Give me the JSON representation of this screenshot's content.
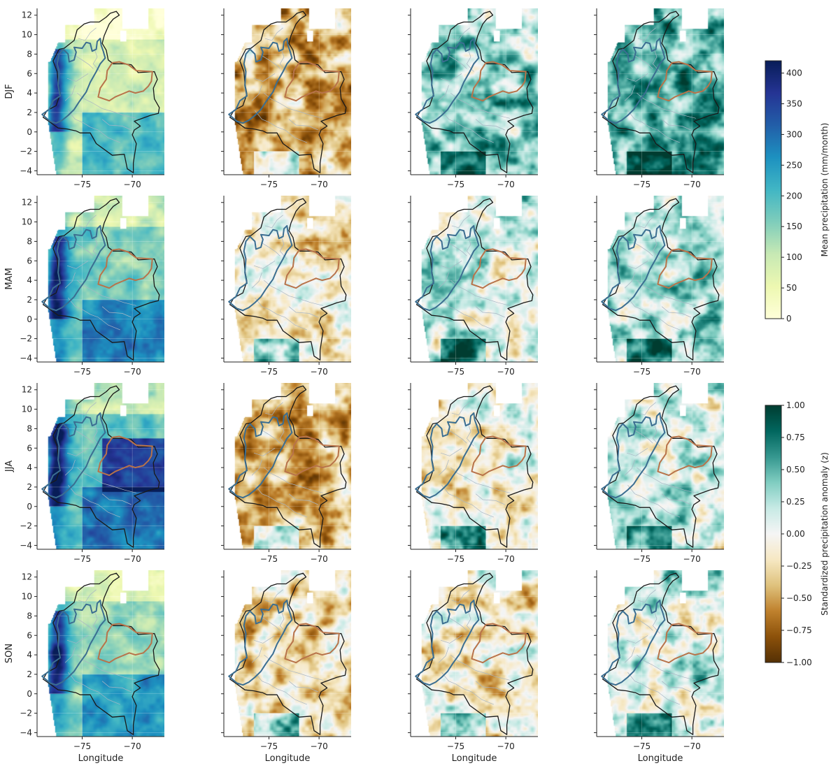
{
  "chart_data": {
    "type": "heatmap",
    "layout": {
      "rows": 4,
      "cols": 4
    },
    "row_labels": [
      "DJF",
      "MAM",
      "JJA",
      "SON"
    ],
    "xlabel": "Longitude",
    "x_ticks": [
      -75,
      -70
    ],
    "y_ticks": [
      12,
      10,
      8,
      6,
      4,
      2,
      0,
      -2,
      -4
    ],
    "x_range": [
      -79.5,
      -66.8
    ],
    "y_range": [
      -4.4,
      12.7
    ],
    "colorbars": [
      {
        "label": "Mean precipitation (mm/month)",
        "ticks": [
          0,
          50,
          100,
          150,
          200,
          250,
          300,
          350,
          400
        ],
        "range": [
          0,
          420
        ],
        "colormap": "YlGnBu",
        "colors": [
          "#ffffd9",
          "#edf8b1",
          "#c7e9b4",
          "#7fcdbb",
          "#41b6c4",
          "#1d91c0",
          "#225ea8",
          "#253494",
          "#081d58"
        ]
      },
      {
        "label": "Standardized precipitation anomaly (z)",
        "ticks": [
          "1.00",
          "0.75",
          "0.50",
          "0.25",
          "0.00",
          "−0.25",
          "−0.50",
          "−0.75",
          "−1.00"
        ],
        "range": [
          -1,
          1
        ],
        "colormap": "BrBG",
        "colors": [
          "#543005",
          "#8c510a",
          "#bf812d",
          "#dfc27d",
          "#f6e8c3",
          "#f5f5f5",
          "#c7eae5",
          "#80cdc1",
          "#35978f",
          "#01665e",
          "#003c30"
        ]
      }
    ],
    "panel_kinds": [
      "mean",
      "anomaly",
      "anomaly",
      "anomaly"
    ]
  },
  "colors": {
    "country_border": "#1a1a1a",
    "west_region_border": "#3b6e91",
    "east_region_border": "#b8734a",
    "internal_borders": "#a9b6c4"
  }
}
